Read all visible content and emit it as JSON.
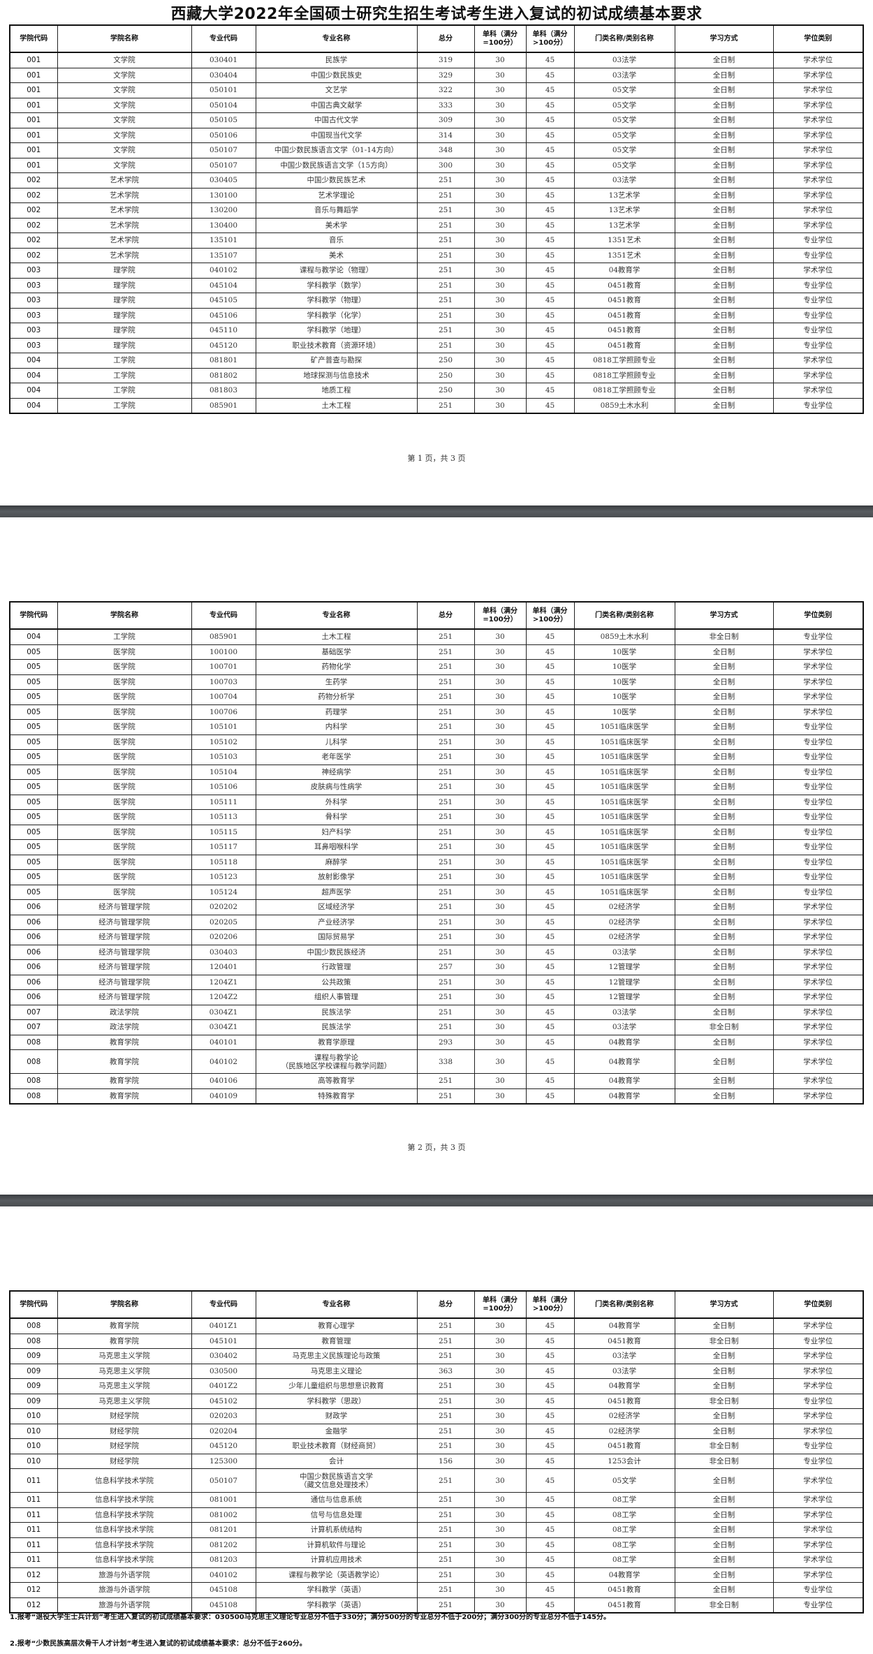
{
  "title": "西藏大学2022年全国硕士研究生招生考试考生进入复试的初试成绩基本要求",
  "headers": [
    "学院代码",
    "学院名称",
    "专业代码",
    "专业名称",
    "总分",
    "单科（满分=100分）",
    "单科（满分>100分）",
    "门类名称/类别名称",
    "学习方式",
    "学位类别"
  ],
  "pages": [
    {
      "footer": "第 1 页，共 3 页",
      "rows": [
        [
          "001",
          "文学院",
          "030401",
          "民族学",
          "319",
          "30",
          "45",
          "03法学",
          "全日制",
          "学术学位"
        ],
        [
          "001",
          "文学院",
          "030404",
          "中国少数民族史",
          "329",
          "30",
          "45",
          "03法学",
          "全日制",
          "学术学位"
        ],
        [
          "001",
          "文学院",
          "050101",
          "文艺学",
          "322",
          "30",
          "45",
          "05文学",
          "全日制",
          "学术学位"
        ],
        [
          "001",
          "文学院",
          "050104",
          "中国古典文献学",
          "333",
          "30",
          "45",
          "05文学",
          "全日制",
          "学术学位"
        ],
        [
          "001",
          "文学院",
          "050105",
          "中国古代文学",
          "309",
          "30",
          "45",
          "05文学",
          "全日制",
          "学术学位"
        ],
        [
          "001",
          "文学院",
          "050106",
          "中国现当代文学",
          "314",
          "30",
          "45",
          "05文学",
          "全日制",
          "学术学位"
        ],
        [
          "001",
          "文学院",
          "050107",
          "中国少数民族语言文学（01-14方向）",
          "348",
          "30",
          "45",
          "05文学",
          "全日制",
          "学术学位"
        ],
        [
          "001",
          "文学院",
          "050107",
          "中国少数民族语言文学（15方向）",
          "300",
          "30",
          "45",
          "05文学",
          "全日制",
          "学术学位"
        ],
        [
          "002",
          "艺术学院",
          "030405",
          "中国少数民族艺术",
          "251",
          "30",
          "45",
          "03法学",
          "全日制",
          "学术学位"
        ],
        [
          "002",
          "艺术学院",
          "130100",
          "艺术学理论",
          "251",
          "30",
          "45",
          "13艺术学",
          "全日制",
          "学术学位"
        ],
        [
          "002",
          "艺术学院",
          "130200",
          "音乐与舞蹈学",
          "251",
          "30",
          "45",
          "13艺术学",
          "全日制",
          "学术学位"
        ],
        [
          "002",
          "艺术学院",
          "130400",
          "美术学",
          "251",
          "30",
          "45",
          "13艺术学",
          "全日制",
          "学术学位"
        ],
        [
          "002",
          "艺术学院",
          "135101",
          "音乐",
          "251",
          "30",
          "45",
          "1351艺术",
          "全日制",
          "专业学位"
        ],
        [
          "002",
          "艺术学院",
          "135107",
          "美术",
          "251",
          "30",
          "45",
          "1351艺术",
          "全日制",
          "专业学位"
        ],
        [
          "003",
          "理学院",
          "040102",
          "课程与教学论（物理）",
          "251",
          "30",
          "45",
          "04教育学",
          "全日制",
          "学术学位"
        ],
        [
          "003",
          "理学院",
          "045104",
          "学科教学（数学）",
          "251",
          "30",
          "45",
          "0451教育",
          "全日制",
          "专业学位"
        ],
        [
          "003",
          "理学院",
          "045105",
          "学科教学（物理）",
          "251",
          "30",
          "45",
          "0451教育",
          "全日制",
          "专业学位"
        ],
        [
          "003",
          "理学院",
          "045106",
          "学科教学（化学）",
          "251",
          "30",
          "45",
          "0451教育",
          "全日制",
          "专业学位"
        ],
        [
          "003",
          "理学院",
          "045110",
          "学科教学（地理）",
          "251",
          "30",
          "45",
          "0451教育",
          "全日制",
          "专业学位"
        ],
        [
          "003",
          "理学院",
          "045120",
          "职业技术教育（资源环境）",
          "251",
          "30",
          "45",
          "0451教育",
          "全日制",
          "专业学位"
        ],
        [
          "004",
          "工学院",
          "081801",
          "矿产普查与勘探",
          "250",
          "30",
          "45",
          "0818工学照顾专业",
          "全日制",
          "学术学位"
        ],
        [
          "004",
          "工学院",
          "081802",
          "地球探测与信息技术",
          "250",
          "30",
          "45",
          "0818工学照顾专业",
          "全日制",
          "学术学位"
        ],
        [
          "004",
          "工学院",
          "081803",
          "地质工程",
          "250",
          "30",
          "45",
          "0818工学照顾专业",
          "全日制",
          "学术学位"
        ],
        [
          "004",
          "工学院",
          "085901",
          "土木工程",
          "251",
          "30",
          "45",
          "0859土木水利",
          "全日制",
          "专业学位"
        ]
      ]
    },
    {
      "footer": "第 2 页，共 3 页",
      "rows": [
        [
          "004",
          "工学院",
          "085901",
          "土木工程",
          "251",
          "30",
          "45",
          "0859土木水利",
          "非全日制",
          "专业学位"
        ],
        [
          "005",
          "医学院",
          "100100",
          "基础医学",
          "251",
          "30",
          "45",
          "10医学",
          "全日制",
          "学术学位"
        ],
        [
          "005",
          "医学院",
          "100701",
          "药物化学",
          "251",
          "30",
          "45",
          "10医学",
          "全日制",
          "学术学位"
        ],
        [
          "005",
          "医学院",
          "100703",
          "生药学",
          "251",
          "30",
          "45",
          "10医学",
          "全日制",
          "学术学位"
        ],
        [
          "005",
          "医学院",
          "100704",
          "药物分析学",
          "251",
          "30",
          "45",
          "10医学",
          "全日制",
          "学术学位"
        ],
        [
          "005",
          "医学院",
          "100706",
          "药理学",
          "251",
          "30",
          "45",
          "10医学",
          "全日制",
          "学术学位"
        ],
        [
          "005",
          "医学院",
          "105101",
          "内科学",
          "251",
          "30",
          "45",
          "1051临床医学",
          "全日制",
          "专业学位"
        ],
        [
          "005",
          "医学院",
          "105102",
          "儿科学",
          "251",
          "30",
          "45",
          "1051临床医学",
          "全日制",
          "专业学位"
        ],
        [
          "005",
          "医学院",
          "105103",
          "老年医学",
          "251",
          "30",
          "45",
          "1051临床医学",
          "全日制",
          "专业学位"
        ],
        [
          "005",
          "医学院",
          "105104",
          "神经病学",
          "251",
          "30",
          "45",
          "1051临床医学",
          "全日制",
          "专业学位"
        ],
        [
          "005",
          "医学院",
          "105106",
          "皮肤病与性病学",
          "251",
          "30",
          "45",
          "1051临床医学",
          "全日制",
          "专业学位"
        ],
        [
          "005",
          "医学院",
          "105111",
          "外科学",
          "251",
          "30",
          "45",
          "1051临床医学",
          "全日制",
          "专业学位"
        ],
        [
          "005",
          "医学院",
          "105113",
          "骨科学",
          "251",
          "30",
          "45",
          "1051临床医学",
          "全日制",
          "专业学位"
        ],
        [
          "005",
          "医学院",
          "105115",
          "妇产科学",
          "251",
          "30",
          "45",
          "1051临床医学",
          "全日制",
          "专业学位"
        ],
        [
          "005",
          "医学院",
          "105117",
          "耳鼻咽喉科学",
          "251",
          "30",
          "45",
          "1051临床医学",
          "全日制",
          "专业学位"
        ],
        [
          "005",
          "医学院",
          "105118",
          "麻醉学",
          "251",
          "30",
          "45",
          "1051临床医学",
          "全日制",
          "专业学位"
        ],
        [
          "005",
          "医学院",
          "105123",
          "放射影像学",
          "251",
          "30",
          "45",
          "1051临床医学",
          "全日制",
          "专业学位"
        ],
        [
          "005",
          "医学院",
          "105124",
          "超声医学",
          "251",
          "30",
          "45",
          "1051临床医学",
          "全日制",
          "专业学位"
        ],
        [
          "006",
          "经济与管理学院",
          "020202",
          "区域经济学",
          "251",
          "30",
          "45",
          "02经济学",
          "全日制",
          "学术学位"
        ],
        [
          "006",
          "经济与管理学院",
          "020205",
          "产业经济学",
          "251",
          "30",
          "45",
          "02经济学",
          "全日制",
          "学术学位"
        ],
        [
          "006",
          "经济与管理学院",
          "020206",
          "国际贸易学",
          "251",
          "30",
          "45",
          "02经济学",
          "全日制",
          "学术学位"
        ],
        [
          "006",
          "经济与管理学院",
          "030403",
          "中国少数民族经济",
          "251",
          "30",
          "45",
          "03法学",
          "全日制",
          "学术学位"
        ],
        [
          "006",
          "经济与管理学院",
          "120401",
          "行政管理",
          "257",
          "30",
          "45",
          "12管理学",
          "全日制",
          "学术学位"
        ],
        [
          "006",
          "经济与管理学院",
          "1204Z1",
          "公共政策",
          "251",
          "30",
          "45",
          "12管理学",
          "全日制",
          "学术学位"
        ],
        [
          "006",
          "经济与管理学院",
          "1204Z2",
          "组织人事管理",
          "251",
          "30",
          "45",
          "12管理学",
          "全日制",
          "学术学位"
        ],
        [
          "007",
          "政法学院",
          "0304Z1",
          "民族法学",
          "251",
          "30",
          "45",
          "03法学",
          "全日制",
          "学术学位"
        ],
        [
          "007",
          "政法学院",
          "0304Z1",
          "民族法学",
          "251",
          "30",
          "45",
          "03法学",
          "非全日制",
          "学术学位"
        ],
        [
          "008",
          "教育学院",
          "040101",
          "教育学原理",
          "293",
          "30",
          "45",
          "04教育学",
          "全日制",
          "学术学位"
        ],
        [
          "008",
          "教育学院",
          "040102",
          "课程与教学论\n（民族地区学校课程与教学问题）",
          "338",
          "30",
          "45",
          "04教育学",
          "全日制",
          "学术学位"
        ],
        [
          "008",
          "教育学院",
          "040106",
          "高等教育学",
          "251",
          "30",
          "45",
          "04教育学",
          "全日制",
          "学术学位"
        ],
        [
          "008",
          "教育学院",
          "040109",
          "特殊教育学",
          "251",
          "30",
          "45",
          "04教育学",
          "全日制",
          "学术学位"
        ]
      ]
    },
    {
      "footer": "",
      "rows": [
        [
          "008",
          "教育学院",
          "0401Z1",
          "教育心理学",
          "251",
          "30",
          "45",
          "04教育学",
          "全日制",
          "学术学位"
        ],
        [
          "008",
          "教育学院",
          "045101",
          "教育管理",
          "251",
          "30",
          "45",
          "0451教育",
          "非全日制",
          "专业学位"
        ],
        [
          "009",
          "马克思主义学院",
          "030402",
          "马克思主义民族理论与政策",
          "251",
          "30",
          "45",
          "03法学",
          "全日制",
          "学术学位"
        ],
        [
          "009",
          "马克思主义学院",
          "030500",
          "马克思主义理论",
          "363",
          "30",
          "45",
          "03法学",
          "全日制",
          "学术学位"
        ],
        [
          "009",
          "马克思主义学院",
          "0401Z2",
          "少年儿童组织与思想意识教育",
          "251",
          "30",
          "45",
          "04教育学",
          "全日制",
          "学术学位"
        ],
        [
          "009",
          "马克思主义学院",
          "045102",
          "学科教学（思政）",
          "251",
          "30",
          "45",
          "0451教育",
          "非全日制",
          "专业学位"
        ],
        [
          "010",
          "财经学院",
          "020203",
          "财政学",
          "251",
          "30",
          "45",
          "02经济学",
          "全日制",
          "学术学位"
        ],
        [
          "010",
          "财经学院",
          "020204",
          "金融学",
          "251",
          "30",
          "45",
          "02经济学",
          "全日制",
          "学术学位"
        ],
        [
          "010",
          "财经学院",
          "045120",
          "职业技术教育（财经商贸）",
          "251",
          "30",
          "45",
          "0451教育",
          "非全日制",
          "专业学位"
        ],
        [
          "010",
          "财经学院",
          "125300",
          "会计",
          "156",
          "30",
          "45",
          "1253会计",
          "非全日制",
          "专业学位"
        ],
        [
          "011",
          "信息科学技术学院",
          "050107",
          "中国少数民族语言文学\n（藏文信息处理技术）",
          "251",
          "30",
          "45",
          "05文学",
          "全日制",
          "学术学位"
        ],
        [
          "011",
          "信息科学技术学院",
          "081001",
          "通信与信息系统",
          "251",
          "30",
          "45",
          "08工学",
          "全日制",
          "学术学位"
        ],
        [
          "011",
          "信息科学技术学院",
          "081002",
          "信号与信息处理",
          "251",
          "30",
          "45",
          "08工学",
          "全日制",
          "学术学位"
        ],
        [
          "011",
          "信息科学技术学院",
          "081201",
          "计算机系统结构",
          "251",
          "30",
          "45",
          "08工学",
          "全日制",
          "学术学位"
        ],
        [
          "011",
          "信息科学技术学院",
          "081202",
          "计算机软件与理论",
          "251",
          "30",
          "45",
          "08工学",
          "全日制",
          "学术学位"
        ],
        [
          "011",
          "信息科学技术学院",
          "081203",
          "计算机应用技术",
          "251",
          "30",
          "45",
          "08工学",
          "全日制",
          "学术学位"
        ],
        [
          "012",
          "旅游与外语学院",
          "040102",
          "课程与教学论（英语教学论）",
          "251",
          "30",
          "45",
          "04教育学",
          "全日制",
          "学术学位"
        ],
        [
          "012",
          "旅游与外语学院",
          "045108",
          "学科教学（英语）",
          "251",
          "30",
          "45",
          "0451教育",
          "全日制",
          "专业学位"
        ],
        [
          "012",
          "旅游与外语学院",
          "045108",
          "学科教学（英语）",
          "251",
          "30",
          "45",
          "0451教育",
          "非全日制",
          "专业学位"
        ]
      ]
    }
  ],
  "notes": [
    "1.报考“退役大学生士兵计划”考生进入复试的初试成绩基本要求：030500马克思主义理论专业总分不低于330分；满分500分的专业总分不低于200分；满分300分的专业总分不低于145分。",
    "2.报考“少数民族高层次骨干人才计划”考生进入复试的初试成绩基本要求：总分不低于260分。"
  ]
}
